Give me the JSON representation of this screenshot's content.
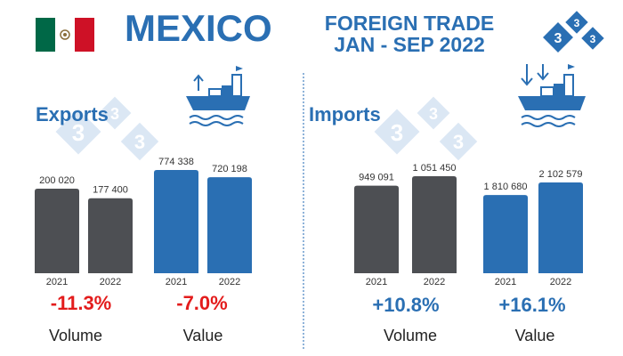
{
  "header": {
    "country": "MEXICO",
    "title_line1": "FOREIGN TRADE",
    "title_line2": "JAN - SEP 2022",
    "logo_text": "3"
  },
  "colors": {
    "accent": "#2a6fb3",
    "volume_bar": "#4d4f53",
    "value_bar": "#2a6fb3",
    "negative": "#e31c1c",
    "positive": "#2a6fb3"
  },
  "exports": {
    "title": "Exports",
    "volume": {
      "change": "-11.3%",
      "label": "Volume"
    },
    "value": {
      "change": "-7.0%",
      "label": "Value"
    }
  },
  "imports": {
    "title": "Imports",
    "volume": {
      "change": "+10.8%",
      "label": "Volume"
    },
    "value": {
      "change": "+16.1%",
      "label": "Value"
    }
  },
  "chart_data": [
    {
      "type": "bar",
      "title": "",
      "categories": [
        "2021",
        "2022"
      ],
      "series": [
        {
          "values": [
            200020,
            177400
          ]
        }
      ],
      "value_labels": [
        "200 020",
        "177 400"
      ]
    },
    {
      "type": "bar",
      "title": "",
      "categories": [
        "2021",
        "2022"
      ],
      "series": [
        {
          "values": [
            774338,
            720198
          ]
        }
      ],
      "value_labels": [
        "774 338",
        "720 198"
      ]
    },
    {
      "type": "bar",
      "title": "",
      "categories": [
        "2021",
        "2022"
      ],
      "series": [
        {
          "values": [
            949091,
            1051450
          ]
        }
      ],
      "value_labels": [
        "949 091",
        "1 051 450"
      ]
    },
    {
      "type": "bar",
      "title": "",
      "categories": [
        "2021",
        "2022"
      ],
      "series": [
        {
          "values": [
            1810680,
            2102579
          ]
        }
      ],
      "value_labels": [
        "1 810 680",
        "2 102 579"
      ]
    }
  ]
}
